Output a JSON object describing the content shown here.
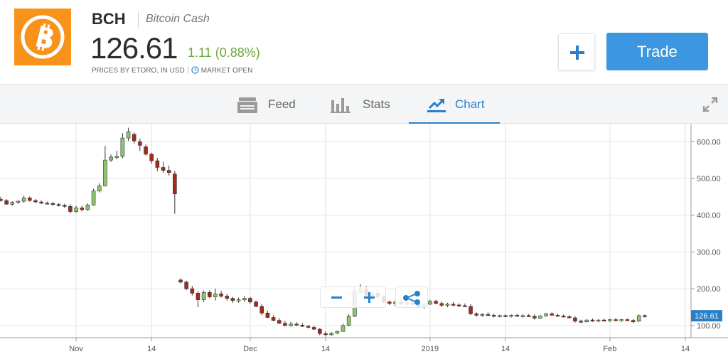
{
  "header": {
    "symbol": "BCH",
    "name": "Bitcoin Cash",
    "price": "126.61",
    "change": "1.11 (0.88%)",
    "prices_note": "PRICES BY ETORO, IN USD",
    "market_status": "MARKET OPEN",
    "trade_label": "Trade",
    "logo_icon": "bitcoin-logo-icon",
    "logo_color": "#f7931a",
    "change_color": "#6aa73b",
    "accent_color": "#3c97e0"
  },
  "tabs": [
    {
      "label": "Feed",
      "icon": "feed-icon"
    },
    {
      "label": "Stats",
      "icon": "stats-icon"
    },
    {
      "label": "Chart",
      "icon": "chart-icon",
      "active": true
    }
  ],
  "chart_data": {
    "type": "candlestick",
    "current_price_label": "126.61",
    "y_ticks": [
      "600.00",
      "500.00",
      "400.00",
      "300.00",
      "200.00",
      "100.00"
    ],
    "y_tick_values": [
      600,
      500,
      400,
      300,
      200,
      100
    ],
    "ylim": [
      65,
      645
    ],
    "x_ticks": [
      "Nov",
      "14",
      "Dec",
      "14",
      "2019",
      "14",
      "Feb",
      "14"
    ],
    "x_tick_days": [
      13,
      26,
      43,
      56,
      74,
      87,
      105,
      118
    ],
    "xlim": [
      0,
      118
    ],
    "grid": true,
    "up_color": "#8cc570",
    "down_color": "#a52a1c",
    "candles": [
      [
        0,
        443,
        450,
        437,
        440
      ],
      [
        1,
        440,
        444,
        428,
        430
      ],
      [
        2,
        430,
        438,
        426,
        435
      ],
      [
        3,
        435,
        441,
        431,
        438
      ],
      [
        4,
        438,
        453,
        434,
        447
      ],
      [
        5,
        447,
        451,
        437,
        440
      ],
      [
        6,
        440,
        444,
        433,
        436
      ],
      [
        7,
        436,
        440,
        430,
        433
      ],
      [
        8,
        433,
        437,
        429,
        432
      ],
      [
        9,
        432,
        436,
        426,
        429
      ],
      [
        10,
        429,
        433,
        424,
        427
      ],
      [
        11,
        427,
        431,
        420,
        424
      ],
      [
        12,
        424,
        430,
        405,
        410
      ],
      [
        13,
        410,
        425,
        407,
        420
      ],
      [
        14,
        420,
        426,
        410,
        415
      ],
      [
        15,
        415,
        432,
        412,
        428
      ],
      [
        16,
        428,
        472,
        426,
        466
      ],
      [
        17,
        466,
        487,
        462,
        480
      ],
      [
        18,
        480,
        588,
        478,
        550
      ],
      [
        19,
        550,
        565,
        545,
        558
      ],
      [
        20,
        558,
        575,
        552,
        560
      ],
      [
        21,
        560,
        623,
        555,
        610
      ],
      [
        22,
        610,
        638,
        602,
        627
      ],
      [
        23,
        620,
        625,
        595,
        602
      ],
      [
        24,
        600,
        608,
        575,
        590
      ],
      [
        25,
        586,
        592,
        562,
        566
      ],
      [
        26,
        566,
        570,
        540,
        548
      ],
      [
        27,
        548,
        556,
        520,
        530
      ],
      [
        28,
        530,
        545,
        515,
        522
      ],
      [
        29,
        522,
        535,
        508,
        516
      ],
      [
        30,
        512,
        520,
        404,
        458
      ],
      [
        31,
        224,
        228,
        214,
        218
      ],
      [
        32,
        218,
        222,
        196,
        200
      ],
      [
        33,
        200,
        208,
        182,
        188
      ],
      [
        34,
        188,
        194,
        150,
        170
      ],
      [
        35,
        170,
        195,
        164,
        190
      ],
      [
        36,
        190,
        196,
        174,
        178
      ],
      [
        37,
        178,
        200,
        168,
        186
      ],
      [
        38,
        186,
        194,
        176,
        180
      ],
      [
        39,
        180,
        186,
        168,
        174
      ],
      [
        40,
        174,
        178,
        162,
        168
      ],
      [
        41,
        168,
        176,
        162,
        170
      ],
      [
        42,
        170,
        180,
        164,
        174
      ],
      [
        43,
        174,
        178,
        160,
        164
      ],
      [
        44,
        164,
        168,
        150,
        152
      ],
      [
        45,
        152,
        158,
        128,
        134
      ],
      [
        46,
        134,
        140,
        120,
        122
      ],
      [
        47,
        122,
        128,
        112,
        114
      ],
      [
        48,
        114,
        120,
        104,
        106
      ],
      [
        49,
        106,
        112,
        98,
        100
      ],
      [
        50,
        100,
        110,
        97,
        104
      ],
      [
        51,
        104,
        109,
        99,
        101
      ],
      [
        52,
        101,
        106,
        96,
        98
      ],
      [
        53,
        98,
        102,
        92,
        95
      ],
      [
        54,
        95,
        100,
        88,
        90
      ],
      [
        55,
        90,
        93,
        74,
        78
      ],
      [
        56,
        78,
        84,
        70,
        75
      ],
      [
        57,
        75,
        82,
        72,
        79
      ],
      [
        58,
        79,
        86,
        77,
        84
      ],
      [
        59,
        84,
        105,
        83,
        100
      ],
      [
        60,
        100,
        130,
        98,
        125
      ],
      [
        61,
        125,
        205,
        123,
        190
      ],
      [
        62,
        190,
        212,
        186,
        200
      ],
      [
        63,
        200,
        208,
        178,
        182
      ],
      [
        64,
        182,
        195,
        170,
        188
      ],
      [
        65,
        188,
        196,
        172,
        178
      ],
      [
        66,
        178,
        182,
        160,
        164
      ],
      [
        67,
        164,
        168,
        156,
        160
      ],
      [
        68,
        160,
        168,
        152,
        164
      ],
      [
        69,
        164,
        170,
        156,
        158
      ],
      [
        70,
        158,
        166,
        150,
        162
      ],
      [
        71,
        162,
        168,
        154,
        158
      ],
      [
        72,
        158,
        160,
        148,
        152
      ],
      [
        73,
        152,
        162,
        146,
        158
      ],
      [
        74,
        158,
        170,
        156,
        166
      ],
      [
        75,
        166,
        170,
        158,
        160
      ],
      [
        76,
        160,
        166,
        150,
        155
      ],
      [
        77,
        155,
        162,
        150,
        158
      ],
      [
        78,
        158,
        164,
        152,
        156
      ],
      [
        79,
        156,
        160,
        150,
        154
      ],
      [
        80,
        154,
        160,
        150,
        152
      ],
      [
        81,
        152,
        158,
        128,
        132
      ],
      [
        82,
        132,
        136,
        124,
        128
      ],
      [
        83,
        128,
        134,
        124,
        130
      ],
      [
        84,
        130,
        136,
        126,
        128
      ],
      [
        85,
        128,
        132,
        122,
        125
      ],
      [
        86,
        125,
        130,
        122,
        127
      ],
      [
        87,
        127,
        131,
        123,
        125
      ],
      [
        88,
        125,
        130,
        122,
        128
      ],
      [
        89,
        128,
        132,
        124,
        126
      ],
      [
        90,
        126,
        131,
        122,
        127
      ],
      [
        91,
        127,
        131,
        123,
        125
      ],
      [
        92,
        125,
        130,
        116,
        120
      ],
      [
        93,
        120,
        128,
        118,
        126
      ],
      [
        94,
        126,
        134,
        124,
        132
      ],
      [
        95,
        132,
        136,
        126,
        128
      ],
      [
        96,
        128,
        132,
        124,
        126
      ],
      [
        97,
        126,
        130,
        122,
        124
      ],
      [
        98,
        124,
        128,
        119,
        121
      ],
      [
        99,
        121,
        125,
        108,
        112
      ],
      [
        100,
        112,
        116,
        106,
        110
      ],
      [
        101,
        110,
        117,
        108,
        115
      ],
      [
        102,
        115,
        119,
        110,
        112
      ],
      [
        103,
        112,
        117,
        109,
        115
      ],
      [
        104,
        115,
        119,
        111,
        113
      ],
      [
        105,
        113,
        118,
        110,
        116
      ],
      [
        106,
        116,
        120,
        112,
        114
      ],
      [
        107,
        114,
        118,
        110,
        116
      ],
      [
        108,
        116,
        119,
        112,
        114
      ],
      [
        109,
        114,
        118,
        106,
        110
      ],
      [
        110,
        112,
        130,
        110,
        127
      ],
      [
        111,
        127,
        130,
        122,
        126.61
      ]
    ]
  }
}
